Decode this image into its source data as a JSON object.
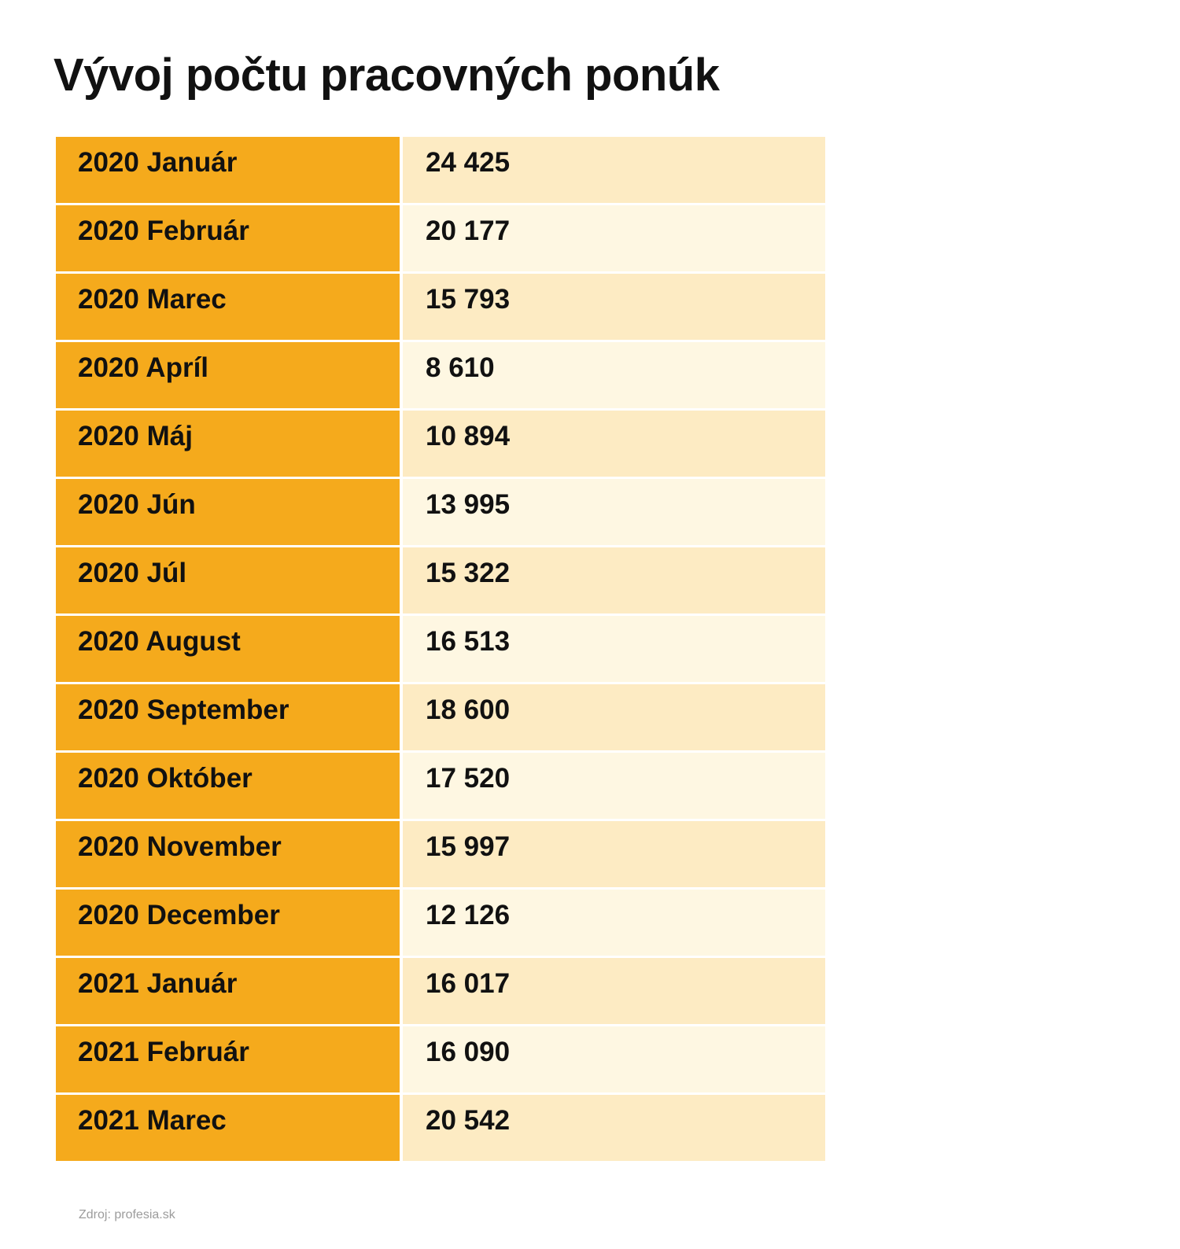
{
  "title": "Vývoj počtu pracovných ponúk",
  "source": "Zdroj: profesia.sk",
  "colors": {
    "label_bg": "#F5AA1C",
    "value_bg_odd": "#FDEBC3",
    "value_bg_even": "#FEF7E2"
  },
  "chart_data": {
    "type": "table",
    "rows": [
      {
        "label": "2020 Január",
        "value": "24 425"
      },
      {
        "label": "2020 Február",
        "value": "20 177"
      },
      {
        "label": "2020 Marec",
        "value": "15 793"
      },
      {
        "label": "2020 Apríl",
        "value": "8 610"
      },
      {
        "label": "2020 Máj",
        "value": "10 894"
      },
      {
        "label": "2020 Jún",
        "value": "13 995"
      },
      {
        "label": "2020 Júl",
        "value": "15 322"
      },
      {
        "label": "2020 August",
        "value": "16 513"
      },
      {
        "label": "2020 September",
        "value": "18 600"
      },
      {
        "label": "2020 Október",
        "value": "17 520"
      },
      {
        "label": "2020 November",
        "value": "15 997"
      },
      {
        "label": "2020 December",
        "value": "12 126"
      },
      {
        "label": "2021 Január",
        "value": "16 017"
      },
      {
        "label": "2021 Február",
        "value": "16 090"
      },
      {
        "label": "2021 Marec",
        "value": "20 542"
      }
    ]
  }
}
